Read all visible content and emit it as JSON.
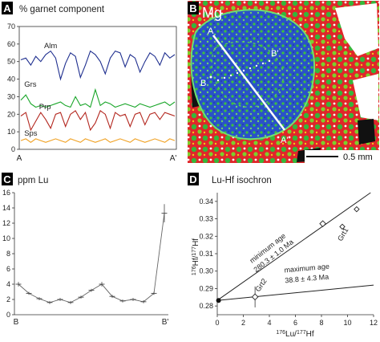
{
  "panels": {
    "A": {
      "letter": "A",
      "title": "% garnet component",
      "left_label": "A",
      "right_label": "A'"
    },
    "B": {
      "letter": "B",
      "element": "Mg",
      "labels": [
        "A",
        "B",
        "B'",
        "A'"
      ],
      "scalebar": "0.5 mm"
    },
    "C": {
      "letter": "C",
      "title": "ppm Lu",
      "left_label": "B",
      "right_label": "B'"
    },
    "D": {
      "letter": "D",
      "title": "Lu-Hf isochron",
      "line1_label1": "minimum age",
      "line1_label2": "280.3 ± 1.0 Ma",
      "line2_label1": "maximum age",
      "line2_label2": "38.8 ± 4.3 Ma",
      "pt1": "Grt1",
      "pt2": "Grt2"
    }
  },
  "chart_data": [
    {
      "panel": "A",
      "type": "line",
      "title": "% garnet component",
      "xlabel": "",
      "ylabel": "",
      "ylim": [
        0,
        70
      ],
      "yticks": [
        0,
        10,
        20,
        30,
        40,
        50,
        60,
        70
      ],
      "x_end_labels": [
        "A",
        "A'"
      ],
      "grid": false,
      "colors": {
        "Alm": "#1f2f8f",
        "Grs": "#1aa62a",
        "Prp": "#b3261e",
        "Sps": "#f0a020"
      },
      "series": [
        {
          "name": "Alm",
          "values": [
            51,
            52,
            48,
            53,
            50,
            54,
            56,
            52,
            40,
            49,
            55,
            53,
            41,
            48,
            56,
            54,
            50,
            43,
            52,
            56,
            55,
            47,
            54,
            52,
            44,
            50,
            55,
            53,
            48,
            55,
            52,
            54
          ]
        },
        {
          "name": "Grs",
          "values": [
            28,
            31,
            26,
            24,
            25,
            24,
            25,
            26,
            27,
            25,
            24,
            30,
            25,
            26,
            24,
            34,
            25,
            27,
            26,
            24,
            25,
            26,
            25,
            24,
            26,
            25,
            24,
            25,
            26,
            27,
            25,
            27
          ]
        },
        {
          "name": "Prp",
          "values": [
            19,
            21,
            11,
            16,
            21,
            17,
            12,
            20,
            21,
            13,
            20,
            22,
            17,
            21,
            11,
            15,
            22,
            20,
            12,
            21,
            19,
            20,
            13,
            20,
            21,
            14,
            20,
            21,
            17,
            21,
            20,
            19
          ]
        },
        {
          "name": "Sps",
          "values": [
            5,
            6,
            4,
            6,
            5,
            4,
            5,
            6,
            5,
            4,
            6,
            5,
            4,
            6,
            5,
            4,
            5,
            6,
            4,
            5,
            6,
            5,
            4,
            6,
            5,
            4,
            5,
            6,
            5,
            4,
            6,
            5
          ]
        }
      ]
    },
    {
      "panel": "C",
      "type": "line",
      "title": "ppm Lu",
      "ylim": [
        0,
        16
      ],
      "yticks": [
        0,
        2,
        4,
        6,
        8,
        10,
        12,
        14,
        16
      ],
      "x_end_labels": [
        "B",
        "B'"
      ],
      "values": [
        4.0,
        2.8,
        2.1,
        1.6,
        2.0,
        1.6,
        2.3,
        3.2,
        4.0,
        2.4,
        1.8,
        2.0,
        1.7,
        2.8,
        13.3
      ],
      "errors": [
        0.3,
        0.2,
        0.2,
        0.2,
        0.2,
        0.2,
        0.2,
        0.2,
        0.3,
        0.2,
        0.2,
        0.2,
        0.2,
        0.2,
        1.2
      ]
    },
    {
      "panel": "D",
      "type": "scatter",
      "title": "Lu-Hf isochron",
      "xlabel": "176Lu/177Hf",
      "ylabel": "176Hf/177Hf",
      "xlim": [
        0,
        12
      ],
      "ylim": [
        0.275,
        0.345
      ],
      "xticks": [
        0,
        2,
        4,
        6,
        8,
        10,
        12
      ],
      "yticks": [
        0.28,
        0.29,
        0.3,
        0.31,
        0.32,
        0.33,
        0.34
      ],
      "points": [
        {
          "label": "Grt1",
          "x": 8.1,
          "y": 0.3272
        },
        {
          "label": "Grt2",
          "x": 2.9,
          "y": 0.2852,
          "yerr": 0.006
        },
        {
          "label": "",
          "x": 9.6,
          "y": 0.3255
        },
        {
          "label": "",
          "x": 10.7,
          "y": 0.3355
        },
        {
          "label": "",
          "x": 0.1,
          "y": 0.2832
        }
      ],
      "lines": [
        {
          "name": "minimum age",
          "age": "280.3 ± 1.0 Ma",
          "intercept": 0.2832,
          "slope": 0.00525
        },
        {
          "name": "maximum age",
          "age": "38.8 ± 4.3 Ma",
          "intercept": 0.2832,
          "slope": 0.00073
        }
      ]
    }
  ]
}
